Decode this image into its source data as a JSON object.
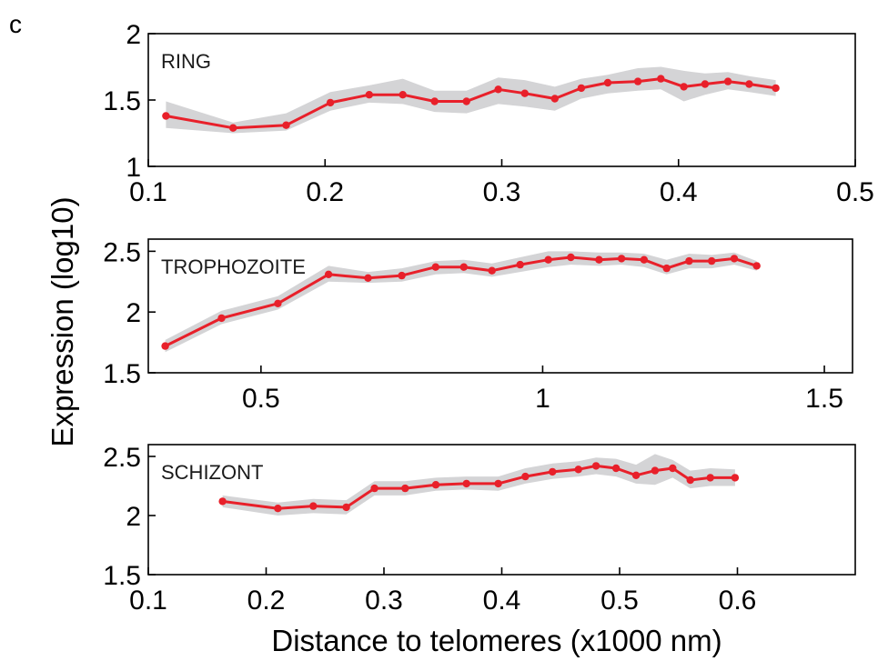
{
  "figure": {
    "panel_letter": "c",
    "ylabel": "Expression (log10)",
    "xlabel": "Distance to telomeres (x1000 nm)",
    "colors": {
      "line": "#e8202a",
      "band": "#d4d4d6",
      "axis": "#000000"
    }
  },
  "chart_data": [
    {
      "type": "line",
      "title": "RING",
      "xlim": [
        0.1,
        0.5
      ],
      "ylim": [
        1,
        2
      ],
      "xticks": [
        "0.1",
        "0.2",
        "0.3",
        "0.4",
        "0.5"
      ],
      "yticks": [
        "1",
        "1.5",
        "2"
      ],
      "xtick_values": [
        0.1,
        0.2,
        0.3,
        0.4,
        0.5
      ],
      "ytick_values": [
        1,
        1.5,
        2
      ],
      "grid": false,
      "series": [
        {
          "x": [
            0.11,
            0.148,
            0.178,
            0.203,
            0.225,
            0.244,
            0.262,
            0.28,
            0.298,
            0.313,
            0.33,
            0.345,
            0.36,
            0.377,
            0.39,
            0.403,
            0.415,
            0.428,
            0.44,
            0.455
          ],
          "y": [
            1.38,
            1.29,
            1.31,
            1.48,
            1.54,
            1.54,
            1.49,
            1.49,
            1.58,
            1.55,
            1.51,
            1.59,
            1.63,
            1.64,
            1.66,
            1.6,
            1.62,
            1.64,
            1.62,
            1.59
          ],
          "lower": [
            1.29,
            1.25,
            1.27,
            1.42,
            1.48,
            1.47,
            1.41,
            1.4,
            1.47,
            1.45,
            1.42,
            1.51,
            1.55,
            1.57,
            1.58,
            1.49,
            1.54,
            1.58,
            1.56,
            1.53
          ],
          "upper": [
            1.49,
            1.33,
            1.4,
            1.56,
            1.61,
            1.66,
            1.57,
            1.57,
            1.67,
            1.65,
            1.6,
            1.66,
            1.69,
            1.74,
            1.75,
            1.72,
            1.7,
            1.71,
            1.68,
            1.65
          ]
        }
      ]
    },
    {
      "type": "line",
      "title": "TROPHOZOITE",
      "xlim": [
        0.3,
        1.55
      ],
      "ylim": [
        1.5,
        2.6
      ],
      "xticks": [
        "0.5",
        "1",
        "1.5"
      ],
      "yticks": [
        "1.5",
        "2",
        "2.5"
      ],
      "xtick_values": [
        0.5,
        1.0,
        1.5
      ],
      "ytick_values": [
        1.5,
        2.0,
        2.5
      ],
      "grid": false,
      "series": [
        {
          "x": [
            0.33,
            0.43,
            0.53,
            0.62,
            0.69,
            0.75,
            0.81,
            0.86,
            0.91,
            0.96,
            1.01,
            1.05,
            1.1,
            1.14,
            1.18,
            1.22,
            1.26,
            1.3,
            1.34,
            1.38
          ],
          "y": [
            1.72,
            1.95,
            2.07,
            2.31,
            2.28,
            2.3,
            2.37,
            2.37,
            2.34,
            2.39,
            2.43,
            2.45,
            2.43,
            2.44,
            2.43,
            2.36,
            2.42,
            2.42,
            2.44,
            2.38
          ],
          "lower": [
            1.67,
            1.9,
            2.02,
            2.25,
            2.24,
            2.25,
            2.31,
            2.32,
            2.29,
            2.33,
            2.37,
            2.39,
            2.38,
            2.39,
            2.37,
            2.31,
            2.36,
            2.36,
            2.39,
            2.34
          ],
          "upper": [
            1.77,
            2.01,
            2.13,
            2.38,
            2.33,
            2.36,
            2.42,
            2.43,
            2.4,
            2.45,
            2.5,
            2.5,
            2.49,
            2.49,
            2.48,
            2.43,
            2.48,
            2.47,
            2.49,
            2.42
          ]
        }
      ]
    },
    {
      "type": "line",
      "title": "SCHIZONT",
      "xlim": [
        0.1,
        0.7
      ],
      "ylim": [
        1.5,
        2.6
      ],
      "xticks": [
        "0.1",
        "0.2",
        "0.3",
        "0.4",
        "0.5",
        "0.6"
      ],
      "yticks": [
        "1.5",
        "2",
        "2.5"
      ],
      "xtick_values": [
        0.1,
        0.2,
        0.3,
        0.4,
        0.5,
        0.6
      ],
      "ytick_values": [
        1.5,
        2.0,
        2.5
      ],
      "grid": false,
      "series": [
        {
          "x": [
            0.163,
            0.21,
            0.24,
            0.268,
            0.292,
            0.318,
            0.344,
            0.37,
            0.397,
            0.42,
            0.443,
            0.465,
            0.48,
            0.497,
            0.514,
            0.53,
            0.545,
            0.56,
            0.577,
            0.598
          ],
          "y": [
            2.12,
            2.06,
            2.08,
            2.07,
            2.23,
            2.23,
            2.26,
            2.27,
            2.27,
            2.33,
            2.37,
            2.39,
            2.42,
            2.4,
            2.34,
            2.38,
            2.4,
            2.3,
            2.32,
            2.32
          ],
          "lower": [
            2.07,
            2.0,
            2.02,
            2.01,
            2.17,
            2.17,
            2.21,
            2.22,
            2.21,
            2.27,
            2.31,
            2.33,
            2.35,
            2.33,
            2.27,
            2.26,
            2.32,
            2.23,
            2.25,
            2.25
          ],
          "upper": [
            2.17,
            2.11,
            2.14,
            2.13,
            2.29,
            2.29,
            2.32,
            2.33,
            2.33,
            2.4,
            2.44,
            2.46,
            2.49,
            2.48,
            2.43,
            2.52,
            2.47,
            2.38,
            2.4,
            2.39
          ]
        }
      ]
    }
  ]
}
